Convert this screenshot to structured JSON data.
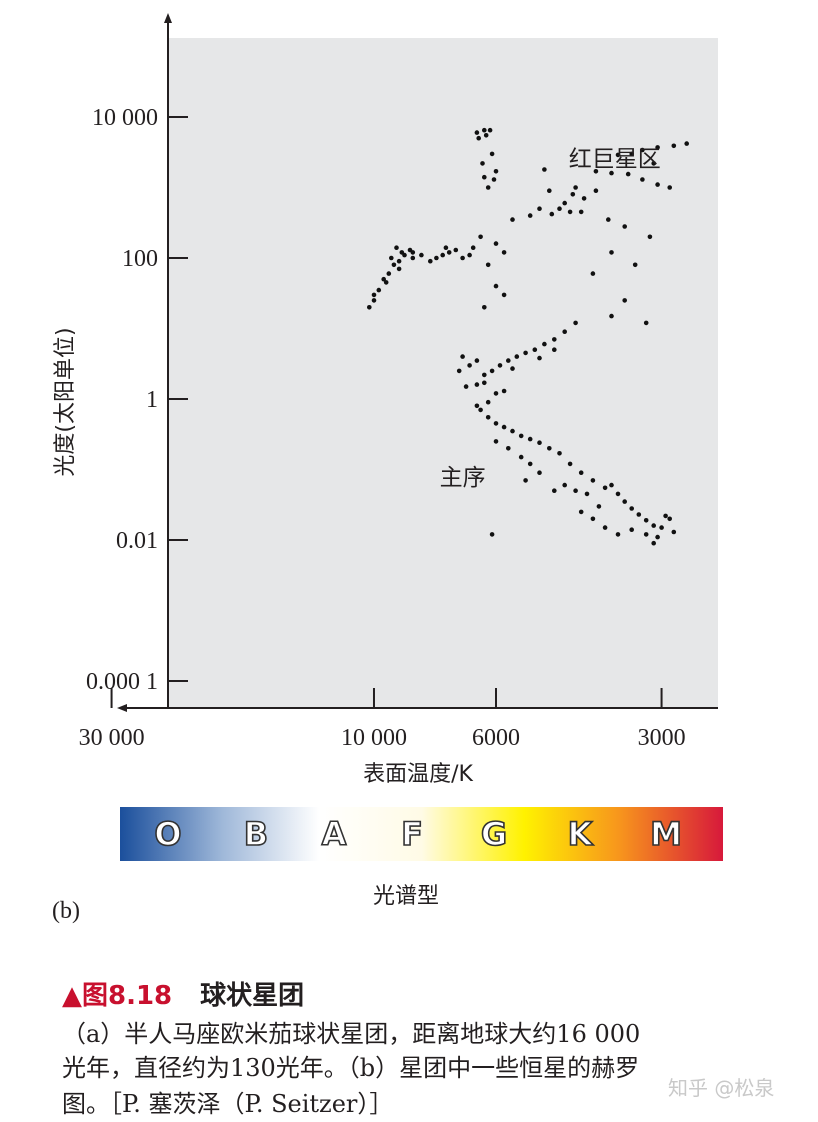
{
  "chart_data": {
    "type": "scatter",
    "title": "",
    "xlabel": "表面温度/K",
    "ylabel": "光度(太阳单位)",
    "x_scale": "log",
    "x_reversed": true,
    "y_scale": "log",
    "x_ticks": [
      {
        "value": 30000,
        "label": "30 000"
      },
      {
        "value": 10000,
        "label": "10 000"
      },
      {
        "value": 6000,
        "label": "6000"
      },
      {
        "value": 3000,
        "label": "3000"
      }
    ],
    "y_ticks": [
      {
        "value": 10000,
        "label": "10 000"
      },
      {
        "value": 100,
        "label": "100"
      },
      {
        "value": 1,
        "label": "1"
      },
      {
        "value": 0.01,
        "label": "0.01"
      },
      {
        "value": 0.0001,
        "label": "0.000 1"
      }
    ],
    "xlim": [
      34000,
      2500
    ],
    "ylim": [
      3e-05,
      150000
    ],
    "grid": false,
    "background_color": "#e6e7e8",
    "annotations": [
      {
        "text": "红巨星区",
        "x": 3650,
        "y": 2000
      },
      {
        "text": "主序",
        "x": 6900,
        "y": 0.06
      }
    ],
    "series": [
      {
        "points": [
          [
            6500,
            6000
          ],
          [
            6300,
            6500
          ],
          [
            6150,
            6500
          ],
          [
            6250,
            5500
          ],
          [
            6450,
            5000
          ],
          [
            6350,
            2200
          ],
          [
            6100,
            3000
          ],
          [
            6000,
            1700
          ],
          [
            6300,
            1400
          ],
          [
            6200,
            1000
          ],
          [
            6050,
            1300
          ],
          [
            4900,
            1800
          ],
          [
            3950,
            1700
          ],
          [
            3700,
            1600
          ],
          [
            3450,
            1550
          ],
          [
            3250,
            1300
          ],
          [
            3050,
            1100
          ],
          [
            2900,
            1000
          ],
          [
            3100,
            2200
          ],
          [
            3600,
            2900
          ],
          [
            3400,
            3000
          ],
          [
            3250,
            3400
          ],
          [
            3050,
            3700
          ],
          [
            2850,
            3900
          ],
          [
            2700,
            4200
          ],
          [
            4500,
            600
          ],
          [
            4350,
            800
          ],
          [
            4150,
            700
          ],
          [
            3950,
            900
          ],
          [
            4300,
            1000
          ],
          [
            4800,
            900
          ],
          [
            5000,
            500
          ],
          [
            5200,
            400
          ],
          [
            5600,
            350
          ],
          [
            4400,
            450
          ],
          [
            4600,
            500
          ],
          [
            4750,
            420
          ],
          [
            4200,
            450
          ],
          [
            3750,
            350
          ],
          [
            3500,
            280
          ],
          [
            3150,
            200
          ],
          [
            3700,
            120
          ],
          [
            3350,
            80
          ],
          [
            4000,
            60
          ],
          [
            3500,
            25
          ],
          [
            3700,
            15
          ],
          [
            3200,
            12
          ],
          [
            6600,
            140
          ],
          [
            6700,
            110
          ],
          [
            6900,
            100
          ],
          [
            7100,
            130
          ],
          [
            7300,
            120
          ],
          [
            7500,
            110
          ],
          [
            7700,
            100
          ],
          [
            7900,
            90
          ],
          [
            8200,
            110
          ],
          [
            8500,
            100
          ],
          [
            7400,
            140
          ],
          [
            6400,
            200
          ],
          [
            6000,
            160
          ],
          [
            5800,
            120
          ],
          [
            6200,
            80
          ],
          [
            6000,
            40
          ],
          [
            5800,
            30
          ],
          [
            6300,
            20
          ],
          [
            10200,
            20
          ],
          [
            10000,
            25
          ],
          [
            9800,
            35
          ],
          [
            9600,
            50
          ],
          [
            9400,
            60
          ],
          [
            9200,
            80
          ],
          [
            9000,
            90
          ],
          [
            8800,
            110
          ],
          [
            8600,
            130
          ],
          [
            9100,
            140
          ],
          [
            9300,
            100
          ],
          [
            8900,
            120
          ],
          [
            10000,
            30
          ],
          [
            9500,
            45
          ],
          [
            8500,
            120
          ],
          [
            9000,
            70
          ],
          [
            6900,
            4
          ],
          [
            6700,
            3
          ],
          [
            7000,
            2.5
          ],
          [
            6500,
            3.5
          ],
          [
            6300,
            2.2
          ],
          [
            6100,
            2.5
          ],
          [
            5900,
            3
          ],
          [
            5700,
            3.5
          ],
          [
            5500,
            4
          ],
          [
            5300,
            4.5
          ],
          [
            5100,
            5
          ],
          [
            4900,
            6
          ],
          [
            4700,
            7
          ],
          [
            4500,
            9
          ],
          [
            4300,
            12
          ],
          [
            4700,
            5
          ],
          [
            5000,
            3.8
          ],
          [
            5600,
            2.7
          ],
          [
            6800,
            1.5
          ],
          [
            6500,
            1.6
          ],
          [
            6300,
            1.7
          ],
          [
            6000,
            1.2
          ],
          [
            5800,
            1.3
          ],
          [
            6200,
            0.9
          ],
          [
            6500,
            0.8
          ],
          [
            6400,
            0.7
          ],
          [
            6200,
            0.55
          ],
          [
            6000,
            0.45
          ],
          [
            5800,
            0.4
          ],
          [
            5600,
            0.35
          ],
          [
            5400,
            0.3
          ],
          [
            5200,
            0.27
          ],
          [
            5000,
            0.24
          ],
          [
            4800,
            0.2
          ],
          [
            4600,
            0.17
          ],
          [
            4400,
            0.12
          ],
          [
            4200,
            0.09
          ],
          [
            4000,
            0.07
          ],
          [
            3800,
            0.055
          ],
          [
            3600,
            0.045
          ],
          [
            3500,
            0.035
          ],
          [
            3400,
            0.028
          ],
          [
            3300,
            0.023
          ],
          [
            3200,
            0.019
          ],
          [
            3100,
            0.016
          ],
          [
            3000,
            0.015
          ],
          [
            2900,
            0.02
          ],
          [
            2850,
            0.013
          ],
          [
            3050,
            0.011
          ],
          [
            3200,
            0.012
          ],
          [
            3400,
            0.014
          ],
          [
            3600,
            0.012
          ],
          [
            3800,
            0.015
          ],
          [
            4000,
            0.02
          ],
          [
            4200,
            0.025
          ],
          [
            3900,
            0.03
          ],
          [
            3700,
            0.06
          ],
          [
            4100,
            0.045
          ],
          [
            4300,
            0.05
          ],
          [
            4500,
            0.06
          ],
          [
            4700,
            0.05
          ],
          [
            5000,
            0.09
          ],
          [
            5200,
            0.12
          ],
          [
            5400,
            0.15
          ],
          [
            5700,
            0.2
          ],
          [
            6000,
            0.25
          ],
          [
            5300,
            0.07
          ],
          [
            6100,
            0.012
          ],
          [
            2950,
            0.022
          ],
          [
            3100,
            0.009
          ]
        ]
      }
    ]
  },
  "spectral_bar": {
    "title": "光谱型",
    "letters": [
      "O",
      "B",
      "A",
      "F",
      "G",
      "K",
      "M"
    ],
    "colors": [
      "#1b4f9c",
      "#9fb8d9",
      "#ffffff",
      "#fffbe6",
      "#fff200",
      "#f7941d",
      "#d7193b"
    ]
  },
  "panel_label": "(b)",
  "caption": {
    "marker": "▲",
    "figure_number": "图8.18",
    "figure_title": "球状星团",
    "lines": [
      "（a）半人马座欧米茄球状星团，距离地球大约16 000",
      "光年，直径约为130光年。（b）星团中一些恒星的赫罗",
      "图。［P. 塞茨泽（P. Seitzer）］"
    ]
  },
  "watermark": "知乎 @松泉"
}
